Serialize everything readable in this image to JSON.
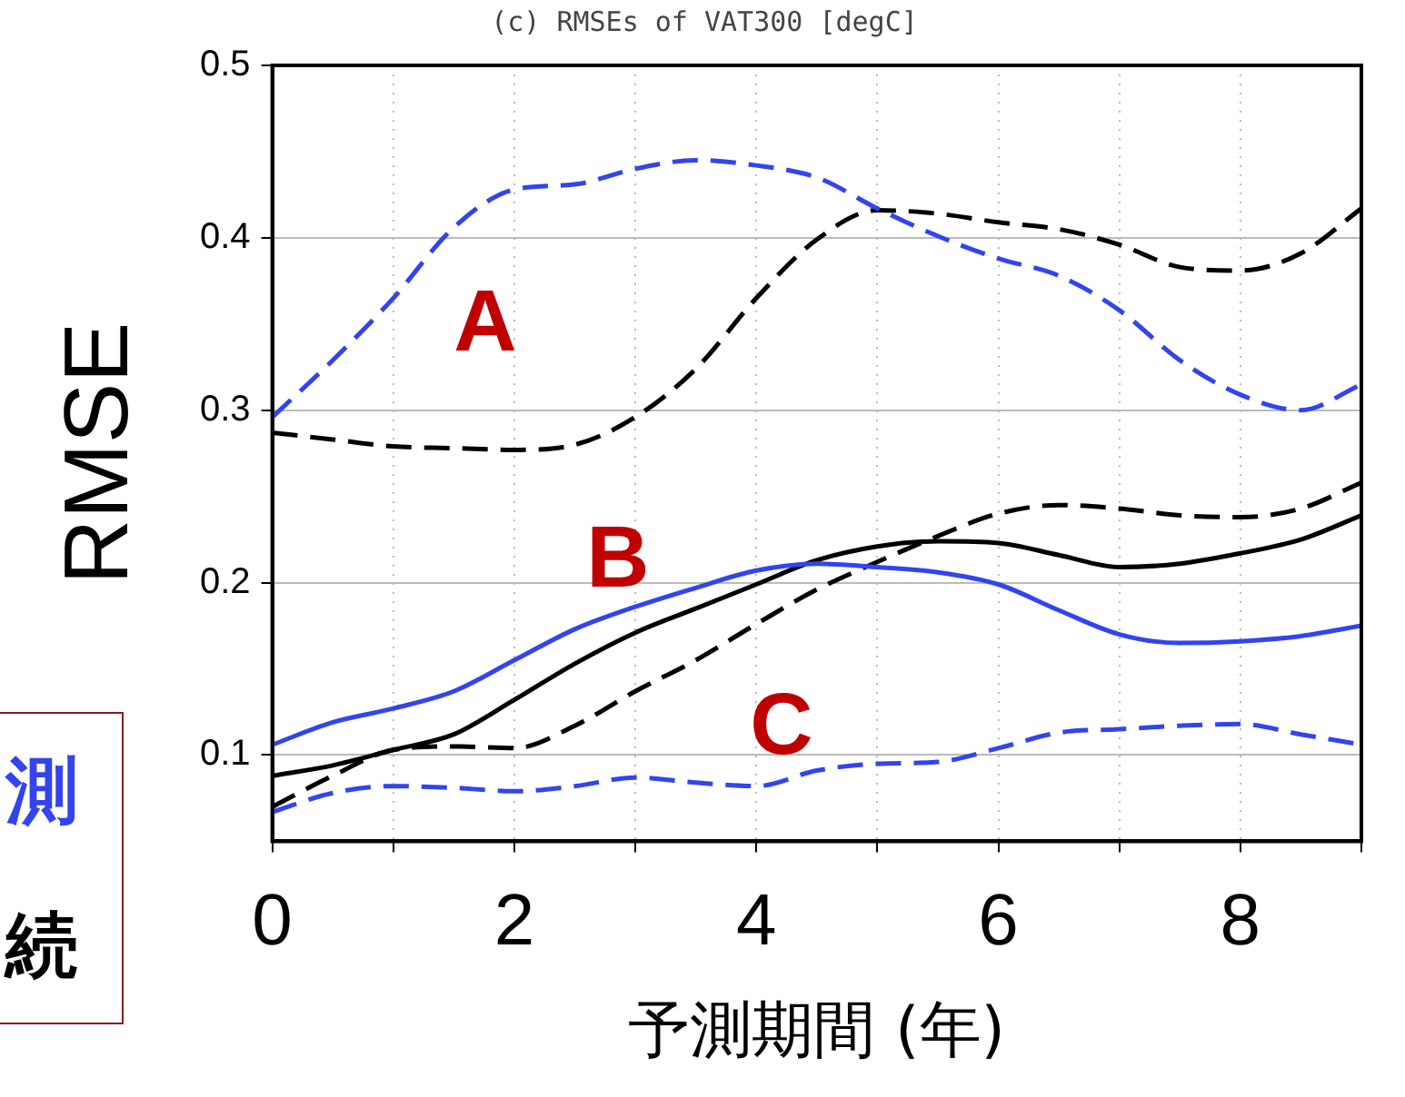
{
  "chart_data": {
    "type": "line",
    "title": "(c) RMSEs of VAT300 [degC]",
    "xlabel": "予測期間 (年)",
    "ylabel": "RMSE",
    "x": [
      0,
      0.5,
      1,
      1.5,
      2,
      2.5,
      3,
      3.5,
      4,
      4.5,
      5,
      5.5,
      6,
      6.5,
      7,
      7.5,
      8,
      8.5,
      9
    ],
    "xlim": [
      0,
      9
    ],
    "xticks": [
      0,
      {
        "value": 1,
        "label": null
      },
      2,
      {
        "value": 3,
        "label": null
      },
      4,
      {
        "value": 5,
        "label": null
      },
      6,
      {
        "value": 7,
        "label": null
      },
      8,
      {
        "value": 9,
        "label": null
      }
    ],
    "ylim": [
      0.05,
      0.5
    ],
    "yticks": [
      0.1,
      0.2,
      0.3,
      0.4,
      0.5
    ],
    "grid": true,
    "legend": false,
    "marker": "none",
    "series": [
      {
        "color": "#3344ee",
        "line_style": "dashed",
        "values": [
          0.296,
          0.329,
          0.365,
          0.406,
          0.428,
          0.431,
          0.44,
          0.445,
          0.442,
          0.435,
          0.417,
          0.401,
          0.388,
          0.378,
          0.358,
          0.329,
          0.309,
          0.3,
          0.315
        ]
      },
      {
        "color": "#000000",
        "line_style": "dashed",
        "values": [
          0.287,
          0.283,
          0.279,
          0.278,
          0.277,
          0.28,
          0.296,
          0.324,
          0.365,
          0.399,
          0.416,
          0.414,
          0.409,
          0.405,
          0.396,
          0.383,
          0.381,
          0.391,
          0.417
        ]
      },
      {
        "color": "#3344ee",
        "line_style": "solid",
        "values": [
          0.106,
          0.119,
          0.127,
          0.137,
          0.155,
          0.173,
          0.186,
          0.197,
          0.207,
          0.211,
          0.209,
          0.206,
          0.199,
          0.184,
          0.17,
          0.165,
          0.166,
          0.169,
          0.175
        ]
      },
      {
        "color": "#000000",
        "line_style": "solid",
        "values": [
          0.088,
          0.094,
          0.103,
          0.112,
          0.132,
          0.153,
          0.171,
          0.185,
          0.199,
          0.213,
          0.221,
          0.224,
          0.223,
          0.216,
          0.209,
          0.211,
          0.217,
          0.225,
          0.239
        ]
      },
      {
        "color": "#000000",
        "line_style": "dashed",
        "values": [
          0.07,
          0.088,
          0.103,
          0.105,
          0.104,
          0.117,
          0.137,
          0.155,
          0.176,
          0.196,
          0.212,
          0.227,
          0.24,
          0.245,
          0.243,
          0.239,
          0.238,
          0.243,
          0.258
        ]
      },
      {
        "color": "#3344ee",
        "line_style": "dashed",
        "values": [
          0.067,
          0.078,
          0.082,
          0.081,
          0.079,
          0.082,
          0.087,
          0.084,
          0.082,
          0.091,
          0.095,
          0.096,
          0.104,
          0.113,
          0.115,
          0.117,
          0.118,
          0.112,
          0.106
        ]
      }
    ],
    "annotations": [
      "A",
      "B",
      "C",
      "測",
      "続"
    ]
  }
}
